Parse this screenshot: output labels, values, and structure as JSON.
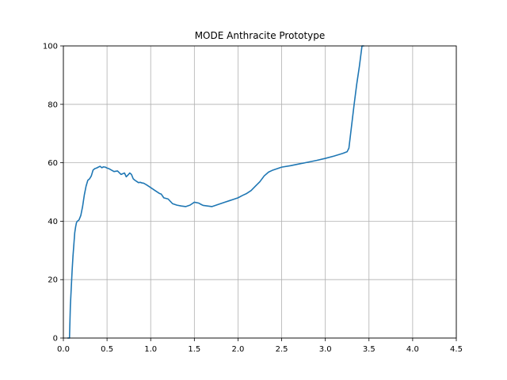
{
  "chart_data": {
    "type": "line",
    "title": "MODE Anthracite Prototype",
    "xlabel": "",
    "ylabel": "",
    "xlim": [
      0.0,
      4.5
    ],
    "ylim": [
      0,
      100
    ],
    "x_ticks": [
      "0.0",
      "0.5",
      "1.0",
      "1.5",
      "2.0",
      "2.5",
      "3.0",
      "3.5",
      "4.0",
      "4.5"
    ],
    "y_ticks": [
      "0",
      "20",
      "40",
      "60",
      "80",
      "100"
    ],
    "grid": true,
    "series_color": "#1f77b4",
    "series": [
      {
        "x": [
          0.05,
          0.07,
          0.08,
          0.09,
          0.1,
          0.11,
          0.12,
          0.13,
          0.14,
          0.15,
          0.16,
          0.17,
          0.18,
          0.2,
          0.22,
          0.24,
          0.26,
          0.28,
          0.3,
          0.32,
          0.34,
          0.36,
          0.38,
          0.4,
          0.42,
          0.44,
          0.46,
          0.48,
          0.5,
          0.52,
          0.55,
          0.58,
          0.62,
          0.66,
          0.7,
          0.72,
          0.74,
          0.76,
          0.78,
          0.8,
          0.82,
          0.84,
          0.86,
          0.88,
          0.9,
          0.92,
          0.95,
          1.0,
          1.05,
          1.1,
          1.12,
          1.15,
          1.2,
          1.25,
          1.3,
          1.35,
          1.4,
          1.45,
          1.5,
          1.55,
          1.58,
          1.6,
          1.65,
          1.7,
          1.75,
          1.8,
          1.85,
          1.9,
          1.95,
          2.0,
          2.05,
          2.1,
          2.15,
          2.2,
          2.25,
          2.3,
          2.35,
          2.4,
          2.45,
          2.5,
          2.6,
          2.7,
          2.8,
          2.9,
          3.0,
          3.1,
          3.2,
          3.25,
          3.27,
          3.29,
          3.31,
          3.33,
          3.36,
          3.39,
          3.42,
          3.44
        ],
        "y": [
          0,
          0,
          11,
          17,
          23,
          28,
          32,
          36,
          38,
          39.5,
          40,
          40.2,
          40.5,
          42,
          45,
          49,
          52,
          54,
          54.5,
          55.5,
          57.5,
          58,
          58.2,
          58.5,
          58.8,
          58.3,
          58.6,
          58.5,
          58.2,
          58,
          57.5,
          57,
          57.2,
          56,
          56.5,
          55.2,
          55.8,
          56.5,
          56,
          54.5,
          54,
          53.6,
          53.2,
          53.3,
          53.1,
          53,
          52.5,
          51.5,
          50.5,
          49.5,
          49.3,
          48,
          47.6,
          46,
          45.5,
          45.2,
          45,
          45.5,
          46.5,
          46.2,
          45.7,
          45.4,
          45.2,
          45,
          45.5,
          46,
          46.5,
          47,
          47.5,
          48,
          48.8,
          49.5,
          50.5,
          52,
          53.5,
          55.5,
          56.8,
          57.5,
          58,
          58.5,
          59,
          59.6,
          60.2,
          60.8,
          61.5,
          62.3,
          63.2,
          63.8,
          65,
          70,
          75,
          80,
          87,
          93,
          100,
          100
        ]
      }
    ]
  }
}
